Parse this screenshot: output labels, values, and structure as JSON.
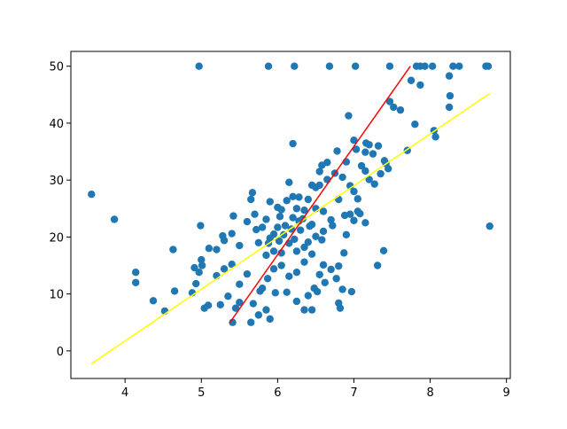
{
  "chart_data": {
    "type": "scatter",
    "xlim": [
      3.29,
      9.05
    ],
    "ylim": [
      -4.85,
      52.6
    ],
    "xticks": [
      4,
      5,
      6,
      7,
      8,
      9
    ],
    "yticks": [
      0,
      10,
      20,
      30,
      40,
      50
    ],
    "series": [
      {
        "type": "scatter",
        "color": "#1f77b4",
        "x": [
          4.97,
          5.88,
          6.22,
          6.68,
          7.02,
          7.47,
          7.82,
          7.87,
          7.93,
          8.03,
          8.3,
          8.38,
          8.73,
          8.76,
          3.56,
          3.86,
          4.14,
          4.14,
          4.37,
          4.52,
          4.63,
          4.65,
          4.88,
          4.91,
          4.93,
          4.97,
          5.0,
          4.99,
          5.04,
          5.09,
          5.01,
          8.78,
          7.31,
          7.39,
          6.97,
          7.7,
          7.8,
          7.87,
          7.75,
          7.61,
          7.47,
          7.52,
          8.07,
          8.05,
          8.25,
          8.26,
          8.25,
          6.93,
          7.16,
          7.2,
          7.03,
          7.0,
          7.25,
          7.32,
          7.15,
          7.4,
          7.35,
          6.78,
          6.2,
          5.41,
          5.45,
          5.5,
          5.65,
          5.75,
          5.9,
          5.85,
          6.35,
          6.45,
          6.8,
          6.82,
          5.25,
          5.35,
          5.68,
          5.97,
          6.12,
          6.25,
          6.4,
          6.52,
          6.15,
          6.55,
          6.62,
          6.7,
          6.77,
          6.8,
          6.6,
          6.35,
          5.5,
          5.2,
          5.3,
          5.4,
          5.6,
          5.8,
          5.77,
          5.87,
          5.95,
          6.05,
          6.25,
          6.48,
          6.85,
          6.45,
          6.87,
          5.1,
          5.2,
          5.28,
          5.3,
          5.4,
          5.42,
          5.5,
          5.6,
          5.65,
          5.67,
          5.7,
          5.8,
          5.85,
          5.9,
          5.95,
          6.0,
          6.05,
          6.1,
          6.15,
          6.2,
          6.25,
          6.15,
          6.3,
          6.35,
          6.4,
          6.45,
          6.5,
          6.55,
          6.6,
          6.65,
          6.7,
          6.75,
          6.8,
          6.85,
          6.9,
          6.95,
          7.0,
          7.05,
          7.1,
          7.15,
          7.2,
          7.27,
          7.42,
          7.45,
          6.65,
          6.55,
          6.58,
          6.45,
          6.02,
          6.03,
          6.08,
          6.18,
          6.22,
          6.28,
          6.12,
          6.2,
          6.28,
          5.95,
          5.85,
          6.4,
          6.5,
          6.6,
          6.72,
          6.88,
          6.95,
          6.42,
          6.35,
          5.88,
          5.75,
          5.72,
          6.05,
          6.9,
          6.33,
          6.5,
          6.0,
          5.9,
          6.25,
          6.58,
          7.0,
          7.08,
          7.15,
          7.05
        ],
        "y": [
          50,
          50,
          50,
          50,
          50,
          50,
          50,
          50,
          50,
          50,
          50,
          50,
          50,
          50,
          27.5,
          23.1,
          13.8,
          12,
          8.8,
          7,
          17.8,
          10.5,
          10.2,
          14.6,
          11.8,
          13.8,
          16,
          22,
          7.5,
          8,
          15,
          21.9,
          15,
          17.6,
          10.4,
          35.2,
          39.8,
          46.7,
          47.5,
          42.3,
          43.8,
          42.8,
          37.6,
          38.7,
          42.8,
          44.8,
          48.3,
          41.3,
          36.5,
          36.2,
          35.4,
          37,
          34.6,
          36,
          31.6,
          33.4,
          31.1,
          35.1,
          36.4,
          5,
          7.5,
          8.5,
          5,
          6.3,
          5.6,
          7.2,
          7.2,
          7.2,
          8.4,
          7.5,
          8.1,
          9.6,
          8.3,
          10.2,
          10.3,
          8.7,
          9.7,
          10.4,
          13.1,
          13.4,
          12,
          14.3,
          12.7,
          14.9,
          15.1,
          15.6,
          11.7,
          13.2,
          14.4,
          15.2,
          13.5,
          11,
          10.5,
          12.7,
          14.4,
          15,
          13.8,
          11,
          10.8,
          17,
          17.2,
          18,
          17.8,
          20.2,
          19.4,
          20.6,
          23.7,
          18.5,
          22.7,
          26.6,
          27.8,
          24,
          21.7,
          23.1,
          19.8,
          20.5,
          21.7,
          24.8,
          22,
          18.9,
          23.4,
          25,
          29.6,
          21.2,
          24.7,
          26.6,
          22.2,
          28.7,
          29.1,
          24.5,
          30.1,
          23,
          31.2,
          26.6,
          30.5,
          33.2,
          29,
          28,
          26.7,
          32.5,
          34.9,
          30.1,
          29.3,
          32.9,
          32,
          33.1,
          31.5,
          32.6,
          29.1,
          19.3,
          23.6,
          20.4,
          21.4,
          19.6,
          22.8,
          26.4,
          27.1,
          27,
          17.5,
          16.8,
          19.1,
          20.1,
          21,
          22,
          23.8,
          24,
          21.9,
          18.2,
          18.9,
          19,
          21.3,
          17.2,
          20.4,
          23.2,
          25,
          25.2,
          26.2,
          17.5,
          19.5,
          22.9,
          24.1,
          22.5,
          24.5
        ]
      },
      {
        "type": "line",
        "color": "#ffff00",
        "x": [
          3.56,
          8.78
        ],
        "y": [
          -2.26,
          45.2
        ]
      },
      {
        "type": "line",
        "color": "#ff0000",
        "x": [
          5.37,
          7.74
        ],
        "y": [
          4.9,
          50
        ]
      }
    ]
  }
}
